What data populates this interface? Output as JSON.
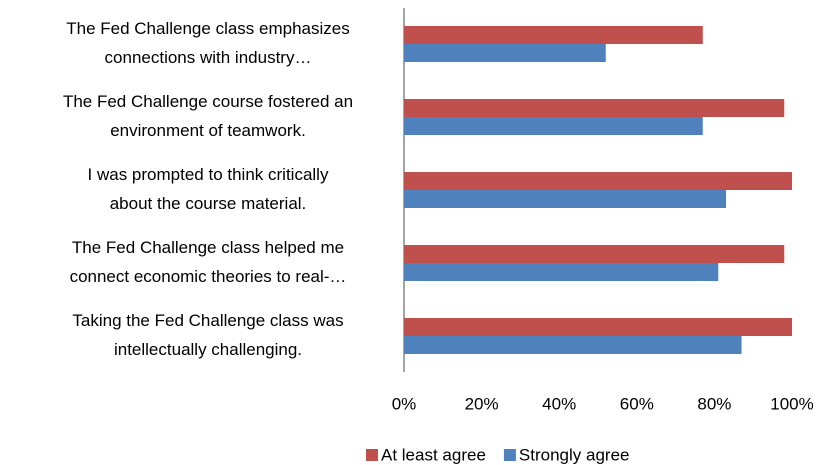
{
  "chart_data": {
    "type": "hbar",
    "categories": [
      [
        "The Fed Challenge class emphasizes",
        "connections with industry…"
      ],
      [
        "The Fed Challenge course fostered an",
        "environment of teamwork."
      ],
      [
        "I was prompted to think critically",
        "about the course material."
      ],
      [
        "The Fed Challenge class helped me",
        "connect economic theories to real-…"
      ],
      [
        "Taking the Fed Challenge class was",
        "intellectually challenging."
      ]
    ],
    "series": [
      {
        "name": "At least agree",
        "color": "#c0504d",
        "values": [
          77,
          98,
          100,
          98,
          100
        ]
      },
      {
        "name": "Strongly agree",
        "color": "#4f81bd",
        "values": [
          52,
          77,
          83,
          81,
          87
        ]
      }
    ],
    "xlim": [
      0,
      100
    ],
    "xticks": [
      {
        "value": 0,
        "label": "0%"
      },
      {
        "value": 20,
        "label": "20%"
      },
      {
        "value": 40,
        "label": "40%"
      },
      {
        "value": 60,
        "label": "60%"
      },
      {
        "value": 80,
        "label": "80%"
      },
      {
        "value": 100,
        "label": "100%"
      }
    ],
    "grid": false,
    "legend": "bottom"
  }
}
